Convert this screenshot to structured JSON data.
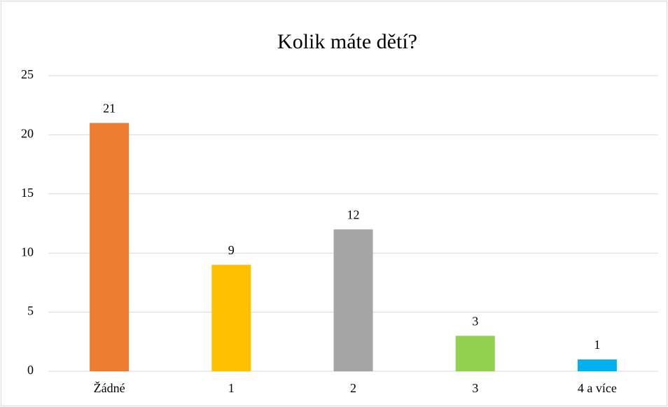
{
  "chart_data": {
    "type": "bar",
    "title": "Kolik máte dětí?",
    "categories": [
      "Žádné",
      "1",
      "2",
      "3",
      "4 a více"
    ],
    "values": [
      21,
      9,
      12,
      3,
      1
    ],
    "colors": [
      "#ed7d31",
      "#ffc000",
      "#a5a5a5",
      "#92d050",
      "#00b0f0"
    ],
    "ylim": [
      0,
      25
    ],
    "yticks": [
      0,
      5,
      10,
      15,
      20,
      25
    ],
    "grid": true
  }
}
